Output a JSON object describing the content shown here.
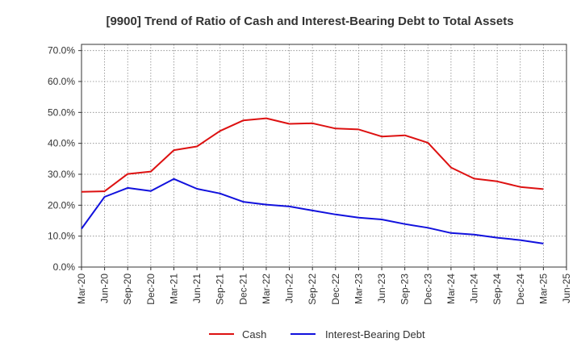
{
  "chart_data": {
    "type": "line",
    "title": "[9900]  Trend of Ratio of Cash and Interest-Bearing Debt to Total Assets",
    "xlabel": "",
    "ylabel": "",
    "x": [
      "Mar-20",
      "Jun-20",
      "Sep-20",
      "Dec-20",
      "Mar-21",
      "Jun-21",
      "Sep-21",
      "Dec-21",
      "Mar-22",
      "Jun-22",
      "Sep-22",
      "Dec-22",
      "Mar-23",
      "Jun-23",
      "Sep-23",
      "Dec-23",
      "Mar-24",
      "Jun-24",
      "Sep-24",
      "Dec-24",
      "Mar-25",
      "Jun-25"
    ],
    "ylim": [
      0,
      72
    ],
    "yticks": [
      0,
      10,
      20,
      30,
      40,
      50,
      60,
      70
    ],
    "ytick_labels": [
      "0.0%",
      "10.0%",
      "20.0%",
      "30.0%",
      "40.0%",
      "50.0%",
      "60.0%",
      "70.0%"
    ],
    "grid": true,
    "legend_position": "bottom",
    "series": [
      {
        "name": "Cash",
        "color": "#dd1111",
        "values": [
          24.3,
          24.5,
          30.1,
          30.9,
          37.8,
          39.0,
          44.0,
          47.4,
          48.1,
          46.3,
          46.5,
          44.8,
          44.5,
          42.2,
          42.6,
          40.2,
          32.2,
          28.6,
          27.7,
          25.9,
          25.2,
          null
        ]
      },
      {
        "name": "Interest-Bearing Debt",
        "color": "#1111dd",
        "values": [
          12.4,
          22.7,
          25.6,
          24.6,
          28.5,
          25.3,
          23.8,
          21.1,
          20.2,
          19.6,
          18.3,
          17.0,
          16.0,
          15.4,
          13.9,
          12.7,
          11.0,
          10.5,
          9.5,
          8.7,
          7.6,
          null
        ]
      }
    ]
  }
}
